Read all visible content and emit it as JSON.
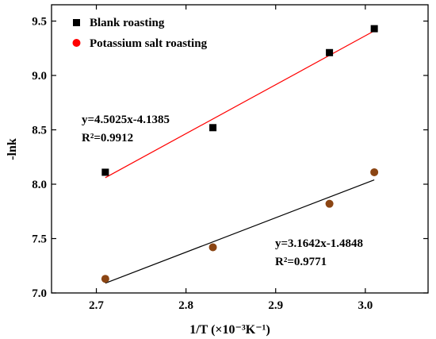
{
  "chart_data": {
    "type": "scatter",
    "xlabel": "1/T (×10⁻³K⁻¹)",
    "ylabel": "-lnk",
    "xlim": [
      2.65,
      3.07
    ],
    "ylim": [
      7.0,
      9.65
    ],
    "xticks": [
      "2.7",
      "2.8",
      "2.9",
      "3.0"
    ],
    "yticks": [
      "7.0",
      "7.5",
      "8.0",
      "8.5",
      "9.0",
      "9.5"
    ],
    "grid": false,
    "legend_position": "top-left",
    "series": [
      {
        "name": "Blank roasting",
        "marker": "square",
        "marker_color": "#000000",
        "line_color": "#ff0000",
        "x": [
          2.71,
          2.83,
          2.96,
          3.01
        ],
        "y": [
          8.11,
          8.52,
          9.21,
          9.43
        ],
        "fit_x": [
          2.71,
          3.01
        ],
        "fit_y": [
          8.06,
          9.41
        ],
        "equation": "y=4.5025x-4.1385",
        "r2": "R²=0.9912"
      },
      {
        "name": "Potassium salt roasting",
        "marker": "circle",
        "marker_color": "#8b4513",
        "legend_color": "#ff0000",
        "line_color": "#000000",
        "x": [
          2.71,
          2.83,
          2.96,
          3.01
        ],
        "y": [
          7.13,
          7.42,
          7.82,
          8.11
        ],
        "fit_x": [
          2.71,
          3.01
        ],
        "fit_y": [
          7.09,
          8.04
        ],
        "equation": "y=3.1642x-1.4848",
        "r2": "R²=0.9771"
      }
    ]
  }
}
